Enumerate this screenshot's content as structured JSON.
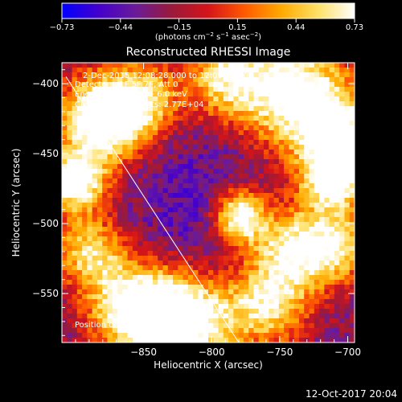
{
  "chart_data": {
    "type": "heatmap",
    "title": "Reconstructed RHESSI Image",
    "xlabel": "Heliocentric X (arcsec)",
    "ylabel": "Heliocentric Y (arcsec)",
    "xlim": [
      -910,
      -695
    ],
    "ylim": [
      -585,
      -385
    ],
    "x_ticks": [
      {
        "value": -850,
        "label": "−850"
      },
      {
        "value": -800,
        "label": "−800"
      },
      {
        "value": -750,
        "label": "−750"
      },
      {
        "value": -700,
        "label": "−700"
      }
    ],
    "y_ticks": [
      {
        "value": -400,
        "label": "−400"
      },
      {
        "value": -450,
        "label": "−450"
      },
      {
        "value": -500,
        "label": "−500"
      },
      {
        "value": -550,
        "label": "−550"
      }
    ],
    "colorbar": {
      "min": -0.73,
      "max": 0.73,
      "tick_labels": [
        "−0.73",
        "−0.44",
        "−0.15",
        "0.15",
        "0.44",
        "0.73"
      ],
      "unit_main": "(photons cm",
      "unit_exp1": "−2",
      "unit_mid": " s",
      "unit_exp2": "−1",
      "unit_tail": " asec",
      "unit_exp3": "−2",
      "unit_close": ")",
      "colors": [
        "#0000ff",
        "#4400cc",
        "#6a1b9a",
        "#9a1a3a",
        "#d4141a",
        "#ff5a00",
        "#ffaa00",
        "#ffe066",
        "#ffffff"
      ]
    },
    "annotations": [
      "2-Dec-2015 12:08:28.000 to 12:09:28.000",
      "Detectors: 1F 5F 7F, Att 0",
      "Energy Range: 3.0 - 6.0 keV",
      "Clean     Total counts: 2.77E+04"
    ],
    "peak_label": "Position of Peak = [-718,-524]",
    "limb_line": [
      {
        "x": -907,
        "y": -395
      },
      {
        "x": -780,
        "y": -585
      }
    ]
  },
  "footer": {
    "date": "12-Oct-2017 20:04"
  }
}
